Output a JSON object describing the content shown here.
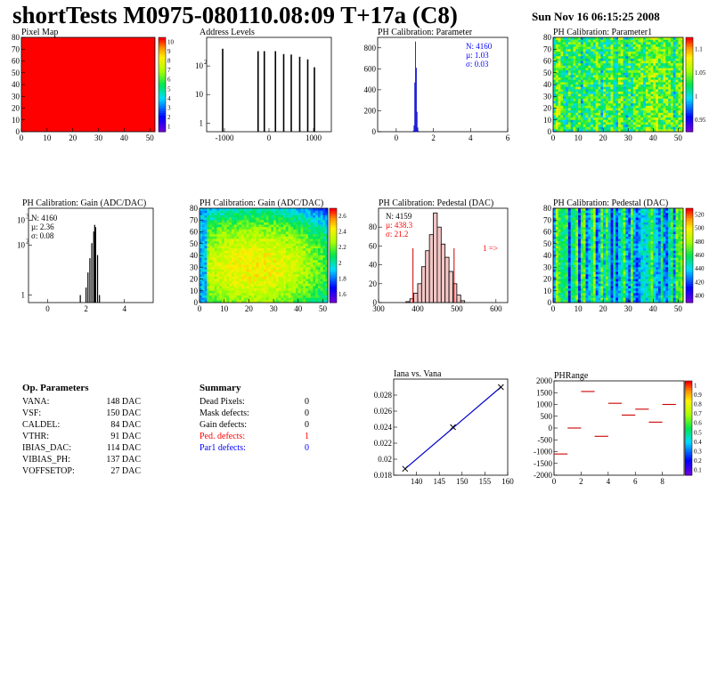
{
  "header": {
    "title": "shortTests M0975-080110.08:09 T+17a (C8)",
    "date": "Sun Nov 16 06:15:25 2008"
  },
  "chart_data": [
    {
      "type": "heatmap",
      "title": "Pixel Map",
      "xticks": [
        "0",
        "10",
        "20",
        "30",
        "40",
        "50"
      ],
      "yticks": [
        "0",
        "10",
        "20",
        "30",
        "40",
        "50",
        "60",
        "70",
        "80"
      ],
      "xlim": [
        0,
        52
      ],
      "ylim": [
        0,
        80
      ],
      "fill_color": "#ff0000",
      "z_fill_value": 10,
      "colorbar_ticks": [
        "1",
        "2",
        "3",
        "4",
        "5",
        "6",
        "7",
        "8",
        "9",
        "10"
      ]
    },
    {
      "type": "bar",
      "title": "Address Levels",
      "log_y": true,
      "xlim": [
        -1400,
        1400
      ],
      "xticks": [
        "-1000",
        "0",
        "1000"
      ],
      "ytick_bases": [
        "1",
        "10",
        "10"
      ],
      "ytick_exps": [
        "",
        "",
        "2"
      ],
      "peaks_x": [
        -1040,
        -245,
        -105,
        145,
        330,
        500,
        690,
        870,
        1020
      ],
      "peaks_y": [
        400,
        330,
        330,
        330,
        260,
        250,
        210,
        170,
        90
      ]
    },
    {
      "type": "bar",
      "title": "PH Calibration: Parameter",
      "xlim": [
        -1,
        6
      ],
      "ylim": [
        0,
        900
      ],
      "xticks": [
        "0",
        "2",
        "4",
        "6"
      ],
      "yticks": [
        "0",
        "200",
        "400",
        "600",
        "800"
      ],
      "bins_x": [
        0.9,
        0.94,
        0.98,
        1.02,
        1.06,
        1.1,
        1.14,
        1.18
      ],
      "bins_y": [
        10,
        60,
        470,
        860,
        610,
        190,
        40,
        8
      ],
      "stats": [
        "N: 4160",
        "µ: 1.03",
        "σ: 0.03"
      ],
      "stats_color": "#0000ff"
    },
    {
      "type": "heatmap",
      "title": "PH Calibration: Parameter1",
      "xticks": [
        "0",
        "10",
        "20",
        "30",
        "40",
        "50"
      ],
      "yticks": [
        "0",
        "10",
        "20",
        "30",
        "40",
        "50",
        "60",
        "70",
        "80"
      ],
      "xlim": [
        0,
        52
      ],
      "ylim": [
        0,
        80
      ],
      "colorbar_ticks": [
        "0.95",
        "1",
        "1.05",
        "1.1"
      ],
      "palette": "rainbow"
    },
    {
      "type": "bar",
      "title": "PH Calibration: Gain (ADC/DAC)",
      "log_y": true,
      "xlim": [
        -1,
        5.5
      ],
      "xticks": [
        "0",
        "2",
        "4"
      ],
      "ytick_bases": [
        "1",
        "10",
        "10"
      ],
      "ytick_exps": [
        "",
        "2",
        "3"
      ],
      "bins_x": [
        1.7,
        2.0,
        2.1,
        2.2,
        2.3,
        2.4,
        2.45,
        2.5,
        2.6,
        2.7
      ],
      "bins_y": [
        1,
        2,
        8,
        30,
        120,
        350,
        650,
        520,
        40,
        1
      ],
      "stats": [
        "N: 4160",
        "µ: 2.36",
        "σ: 0.08"
      ],
      "stats_color": "#000000"
    },
    {
      "type": "heatmap",
      "title": "PH Calibration: Gain (ADC/DAC)",
      "xticks": [
        "0",
        "10",
        "20",
        "30",
        "40",
        "50"
      ],
      "yticks": [
        "0",
        "10",
        "20",
        "30",
        "40",
        "50",
        "60",
        "70",
        "80"
      ],
      "xlim": [
        0,
        52
      ],
      "ylim": [
        0,
        80
      ],
      "colorbar_ticks": [
        "1.6",
        "1.8",
        "2",
        "2.2",
        "2.4",
        "2.6"
      ],
      "palette": "rainbow"
    },
    {
      "type": "bar",
      "title": "PH Calibration: Pedestal (DAC)",
      "xlim": [
        300,
        630
      ],
      "ylim": [
        0,
        100
      ],
      "xticks": [
        "300",
        "400",
        "500",
        "600"
      ],
      "yticks": [
        "0",
        "20",
        "40",
        "60",
        "80"
      ],
      "bins_x": [
        370,
        380,
        390,
        400,
        410,
        420,
        430,
        440,
        450,
        460,
        470,
        480,
        490,
        500,
        510
      ],
      "bins_y": [
        1,
        4,
        10,
        20,
        38,
        55,
        72,
        95,
        80,
        62,
        48,
        33,
        20,
        8,
        2
      ],
      "cut_lines_x": [
        388,
        493
      ],
      "stats": [
        "N: 4159",
        "µ: 438.3",
        "σ: 21.2"
      ],
      "stats_colors": [
        "#000000",
        "#ff0000",
        "#ff0000"
      ],
      "overflow_label": "1 =>",
      "overflow_color": "#ff0000"
    },
    {
      "type": "heatmap",
      "title": "PH Calibration: Pedestal (DAC)",
      "xticks": [
        "0",
        "10",
        "20",
        "30",
        "40",
        "50"
      ],
      "yticks": [
        "0",
        "10",
        "20",
        "30",
        "40",
        "50",
        "60",
        "70",
        "80"
      ],
      "xlim": [
        0,
        52
      ],
      "ylim": [
        0,
        80
      ],
      "colorbar_ticks": [
        "400",
        "420",
        "440",
        "460",
        "480",
        "500",
        "520"
      ],
      "palette": "rainbow"
    },
    {
      "type": "line",
      "title": "Iana vs. Vana",
      "xlim": [
        135,
        160
      ],
      "ylim": [
        0.018,
        0.03
      ],
      "xticks": [
        "140",
        "145",
        "150",
        "155",
        "160"
      ],
      "yticks": [
        "0.018",
        "0.02",
        "0.022",
        "0.024",
        "0.026",
        "0.028"
      ],
      "x": [
        137.5,
        148,
        158.5
      ],
      "y": [
        0.0188,
        0.024,
        0.029
      ]
    },
    {
      "type": "scatter",
      "title": "PHRange",
      "xlim": [
        0,
        9.6
      ],
      "ylim": [
        -2000,
        2000
      ],
      "xticks": [
        "0",
        "2",
        "4",
        "6",
        "8"
      ],
      "yticks": [
        "2000",
        "1500",
        "1000",
        "500",
        "0",
        "-500",
        "-1000",
        "-1500",
        "-2000"
      ],
      "colorbar_ticks": [
        "0.1",
        "0.2",
        "0.3",
        "0.4",
        "0.5",
        "0.6",
        "0.7",
        "0.8",
        "0.9",
        "1"
      ],
      "segments_x": [
        0.5,
        1.5,
        3.5,
        2.5,
        4.5,
        5.5,
        6.5,
        7.5,
        8.5
      ],
      "segments_y": [
        -1100,
        0,
        -350,
        1550,
        1050,
        550,
        800,
        250,
        1000
      ]
    }
  ],
  "op_params": {
    "heading": "Op. Parameters",
    "rows": [
      {
        "name": "VANA:",
        "value": "148 DAC"
      },
      {
        "name": "VSF:",
        "value": "150 DAC"
      },
      {
        "name": "CALDEL:",
        "value": "84 DAC"
      },
      {
        "name": "VTHR:",
        "value": "91 DAC"
      },
      {
        "name": "IBIAS_DAC:",
        "value": "114 DAC"
      },
      {
        "name": "VIBIAS_PH:",
        "value": "137 DAC"
      },
      {
        "name": "VOFFSETOP:",
        "value": "27 DAC"
      }
    ]
  },
  "summary": {
    "heading": "Summary",
    "rows": [
      {
        "name": "Dead Pixels:",
        "value": "0",
        "color": "#000000"
      },
      {
        "name": "Mask defects:",
        "value": "0",
        "color": "#000000"
      },
      {
        "name": "Gain defects:",
        "value": "0",
        "color": "#000000"
      },
      {
        "name": "Ped. defects:",
        "value": "1",
        "color": "#ff0000"
      },
      {
        "name": "Par1 defects:",
        "value": "0",
        "color": "#0000ff"
      }
    ]
  }
}
